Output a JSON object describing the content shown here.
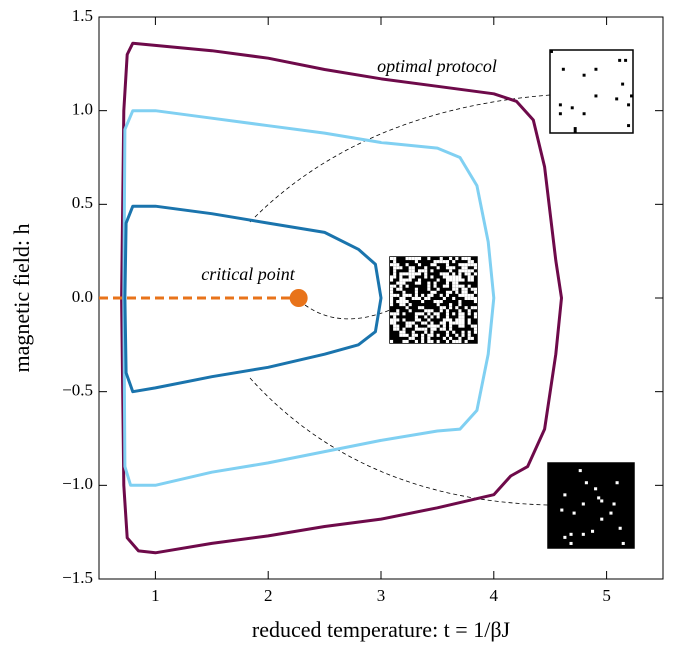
{
  "chart_data": {
    "type": "line",
    "x_label": "reduced temperature: t = 1/βJ",
    "y_label": "magnetic field: h",
    "xlim": [
      0.5,
      5.5
    ],
    "ylim": [
      -1.5,
      1.5
    ],
    "xticks": [
      1,
      2,
      3,
      4,
      5
    ],
    "yticks": [
      {
        "value": -1.5,
        "label": "−1.5"
      },
      {
        "value": -1.0,
        "label": "−1.0"
      },
      {
        "value": -0.5,
        "label": "−0.5"
      },
      {
        "value": 0,
        "label": "0.0"
      },
      0.5,
      {
        "value": 1.0,
        "label": "1.0"
      },
      1.5
    ],
    "grid": false,
    "series": [
      {
        "color": "#6e0a4a",
        "x": [
          0.7,
          0.72,
          0.75,
          0.8,
          1.5,
          2,
          2.5,
          3,
          3.5,
          4,
          4.2,
          4.35,
          4.45,
          4.55,
          4.6,
          4.55,
          4.45,
          4.3,
          4.15,
          4,
          3.5,
          3,
          2.5,
          2,
          1.5,
          1,
          0.85,
          0.75,
          0.72,
          0.7
        ],
        "y": [
          0,
          1.0,
          1.3,
          1.36,
          1.32,
          1.28,
          1.22,
          1.17,
          1.13,
          1.09,
          1.05,
          0.95,
          0.7,
          0.2,
          0,
          -0.3,
          -0.7,
          -0.9,
          -0.95,
          -1.05,
          -1.12,
          -1.18,
          -1.22,
          -1.27,
          -1.31,
          -1.36,
          -1.35,
          -1.28,
          -1.0,
          0
        ]
      },
      {
        "color": "#80d0f2",
        "x": [
          0.72,
          0.73,
          0.8,
          1,
          1.5,
          2,
          2.5,
          3,
          3.5,
          3.7,
          3.85,
          3.95,
          4,
          3.95,
          3.85,
          3.7,
          3.5,
          3,
          2.5,
          2,
          1.5,
          1,
          0.78,
          0.73,
          0.72
        ],
        "y": [
          0,
          0.9,
          1.0,
          1.0,
          0.96,
          0.92,
          0.88,
          0.83,
          0.8,
          0.75,
          0.6,
          0.3,
          0,
          -0.3,
          -0.6,
          -0.7,
          -0.71,
          -0.76,
          -0.82,
          -0.88,
          -0.93,
          -1.0,
          -1.0,
          -0.9,
          0
        ]
      },
      {
        "color": "#1a74ad",
        "x": [
          0.73,
          0.74,
          0.8,
          1,
          1.5,
          2,
          2.5,
          2.8,
          2.95,
          3,
          2.95,
          2.8,
          2.5,
          2,
          1.5,
          1,
          0.8,
          0.74,
          0.73
        ],
        "y": [
          0,
          0.4,
          0.49,
          0.49,
          0.45,
          0.4,
          0.35,
          0.26,
          0.18,
          0,
          -0.18,
          -0.25,
          -0.3,
          -0.37,
          -0.42,
          -0.48,
          -0.5,
          -0.4,
          0
        ]
      },
      {
        "color": "#e8731a",
        "dashed": true,
        "x": [
          0.5,
          2.27
        ],
        "y": [
          0,
          0
        ]
      }
    ],
    "critical_point": {
      "label": "critical point",
      "x": 2.27,
      "y": 0,
      "color": "#e8731a"
    },
    "annotation": "optimal protocol"
  }
}
